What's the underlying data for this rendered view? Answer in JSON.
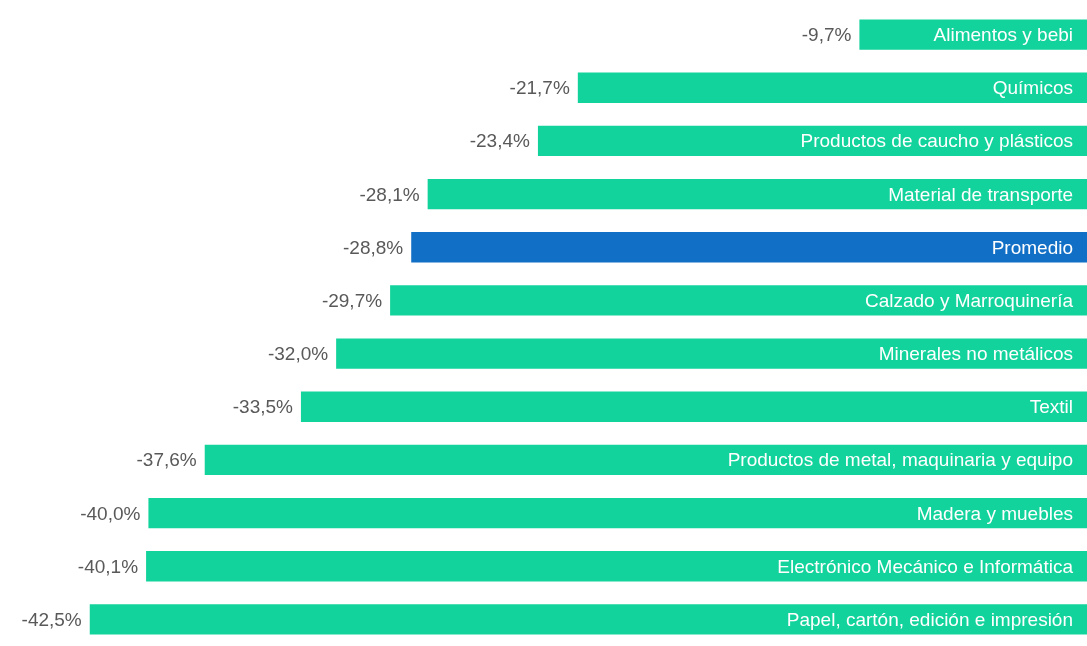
{
  "chart_data": {
    "type": "bar",
    "orientation": "horizontal",
    "categories": [
      "Alimentos y bebi",
      "Químicos",
      "Productos de caucho y plásticos",
      "Material de transporte",
      "Promedio",
      "Calzado y Marroquinería",
      "Minerales no metálicos",
      "Textil",
      "Productos de metal, maquinaria y equipo",
      "Madera y muebles",
      "Electrónico Mecánico e Informática",
      "Papel, cartón, edición e impresión"
    ],
    "values": [
      -9.7,
      -21.7,
      -23.4,
      -28.1,
      -28.8,
      -29.7,
      -32.0,
      -33.5,
      -37.6,
      -40.0,
      -40.1,
      -42.5
    ],
    "value_labels": [
      "-9,7%",
      "-21,7%",
      "-23,4%",
      "-28,1%",
      "-28,8%",
      "-29,7%",
      "-32,0%",
      "-33,5%",
      "-37,6%",
      "-40,0%",
      "-40,1%",
      "-42,5%"
    ],
    "colors": [
      "#13d39c",
      "#13d39c",
      "#13d39c",
      "#13d39c",
      "#126fc6",
      "#13d39c",
      "#13d39c",
      "#13d39c",
      "#13d39c",
      "#13d39c",
      "#13d39c",
      "#13d39c"
    ]
  }
}
